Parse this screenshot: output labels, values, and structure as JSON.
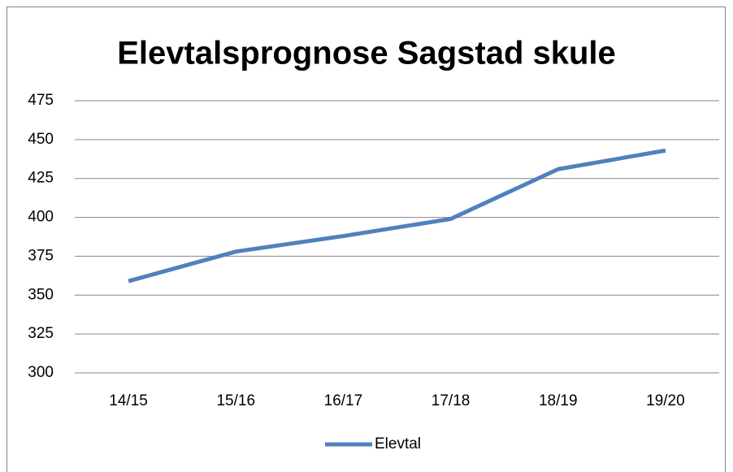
{
  "chart_data": {
    "type": "line",
    "title": "Elevtalsprognose Sagstad skule",
    "categories": [
      "14/15",
      "15/16",
      "16/17",
      "17/18",
      "18/19",
      "19/20"
    ],
    "series": [
      {
        "name": "Elevtal",
        "color": "#4f81bd",
        "values": [
          359,
          378,
          388,
          399,
          431,
          443
        ]
      }
    ],
    "ylim": [
      300,
      475
    ],
    "yticks": [
      300,
      325,
      350,
      375,
      400,
      425,
      450,
      475
    ],
    "grid": true,
    "legend": "bottom"
  }
}
